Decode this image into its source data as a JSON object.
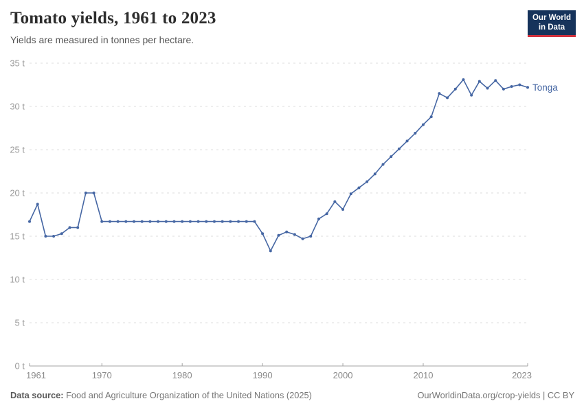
{
  "header": {
    "title": "Tomato yields, 1961 to 2023",
    "subtitle": "Yields are measured in tonnes per hectare.",
    "logo": {
      "line1": "Our World",
      "line2": "in Data",
      "bg_color": "#16335b",
      "accent_color": "#d0313d"
    }
  },
  "chart_data": {
    "type": "line",
    "title": "Tomato yields, 1961 to 2023",
    "ylabel": "tonnes per hectare",
    "xlabel": "",
    "xlim": [
      1961,
      2023
    ],
    "ylim": [
      0,
      35
    ],
    "grid": "horizontal-dashed",
    "legend_position": "end-of-line-label",
    "yticks": [
      {
        "v": 0,
        "label": "0 t"
      },
      {
        "v": 5,
        "label": "5 t"
      },
      {
        "v": 10,
        "label": "10 t"
      },
      {
        "v": 15,
        "label": "15 t"
      },
      {
        "v": 20,
        "label": "20 t"
      },
      {
        "v": 25,
        "label": "25 t"
      },
      {
        "v": 30,
        "label": "30 t"
      },
      {
        "v": 35,
        "label": "35 t"
      }
    ],
    "xticks": [
      {
        "v": 1961,
        "label": "1961"
      },
      {
        "v": 1970,
        "label": "1970"
      },
      {
        "v": 1980,
        "label": "1980"
      },
      {
        "v": 1990,
        "label": "1990"
      },
      {
        "v": 2000,
        "label": "2000"
      },
      {
        "v": 2010,
        "label": "2010"
      },
      {
        "v": 2023,
        "label": "2023"
      }
    ],
    "series": [
      {
        "name": "Tonga",
        "color": "#4566a3",
        "x": [
          1961,
          1962,
          1963,
          1964,
          1965,
          1966,
          1967,
          1968,
          1969,
          1970,
          1971,
          1972,
          1973,
          1974,
          1975,
          1976,
          1977,
          1978,
          1979,
          1980,
          1981,
          1982,
          1983,
          1984,
          1985,
          1986,
          1987,
          1988,
          1989,
          1990,
          1991,
          1992,
          1993,
          1994,
          1995,
          1996,
          1997,
          1998,
          1999,
          2000,
          2001,
          2002,
          2003,
          2004,
          2005,
          2006,
          2007,
          2008,
          2009,
          2010,
          2011,
          2012,
          2013,
          2014,
          2015,
          2016,
          2017,
          2018,
          2019,
          2020,
          2021,
          2022,
          2023
        ],
        "values": [
          16.7,
          18.7,
          15.0,
          15.0,
          15.3,
          16.0,
          16.0,
          20.0,
          20.0,
          16.7,
          16.7,
          16.7,
          16.7,
          16.7,
          16.7,
          16.7,
          16.7,
          16.7,
          16.7,
          16.7,
          16.7,
          16.7,
          16.7,
          16.7,
          16.7,
          16.7,
          16.7,
          16.7,
          16.7,
          15.3,
          13.3,
          15.1,
          15.5,
          15.2,
          14.7,
          15.0,
          17.0,
          17.6,
          19.0,
          18.1,
          19.9,
          20.6,
          21.3,
          22.2,
          23.3,
          24.2,
          25.1,
          26.0,
          26.9,
          27.9,
          28.8,
          31.5,
          31.0,
          32.0,
          33.1,
          31.3,
          32.9,
          32.1,
          33.0,
          32.0,
          32.3,
          32.5,
          32.2
        ]
      }
    ]
  },
  "footer": {
    "source_label": "Data source:",
    "source_text": " Food and Agriculture Organization of the United Nations (2025)",
    "credit": "OurWorldinData.org/crop-yields | CC BY"
  }
}
